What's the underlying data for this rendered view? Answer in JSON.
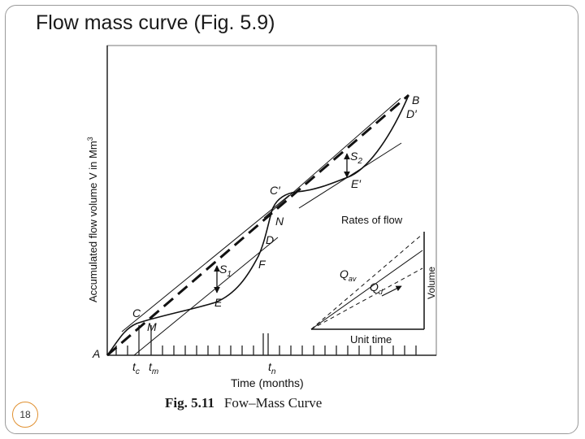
{
  "slide": {
    "title": "Flow mass curve (Fig. 5.9)",
    "page_number": "18"
  },
  "figure": {
    "number": "Fig. 5.11",
    "caption": "Fow–Mass Curve",
    "y_axis_label": "Accumulated flow volume V in Mm",
    "y_axis_label_sup": "3",
    "x_axis_label": "Time (months)",
    "point_labels": {
      "A": "A",
      "B": "B",
      "C": "C",
      "C_prime": "C′",
      "D": "D",
      "D_prime": "D′",
      "E": "E",
      "E_prime": "E′",
      "F": "F",
      "M": "M",
      "N": "N"
    },
    "storage_labels": {
      "s1_main": "S",
      "s1_sub": "1",
      "s2_main": "S",
      "s2_sub": "2"
    },
    "time_labels": {
      "tc_main": "t",
      "tc_sub": "c",
      "tm_main": "t",
      "tm_sub": "m",
      "tn_main": "t",
      "tn_sub": "n"
    },
    "inset": {
      "title": "Rates of flow",
      "x_label": "Unit time",
      "y_label": "Volume",
      "qav_main": "Q",
      "qav_sub": "av",
      "qd_main": "Q",
      "qd_sub": "d"
    }
  }
}
